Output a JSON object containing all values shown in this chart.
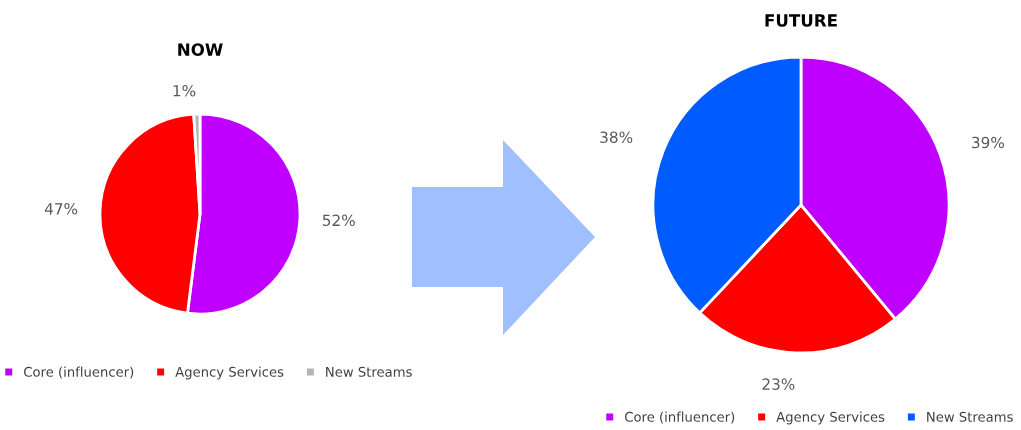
{
  "chart_data": [
    {
      "type": "pie",
      "title": "NOW",
      "categories": [
        "Core (influencer)",
        "Agency Services",
        "New Streams"
      ],
      "values": [
        52,
        47,
        1
      ],
      "colors": [
        "#bf00ff",
        "#ff0000",
        "#b4b4b4"
      ],
      "value_labels": [
        "52%",
        "47%",
        "1%"
      ],
      "legend": "bottom"
    },
    {
      "type": "pie",
      "title": "FUTURE",
      "categories": [
        "Core (influencer)",
        "Agency Services",
        "New Streams"
      ],
      "values": [
        39,
        23,
        38
      ],
      "colors": [
        "#bf00ff",
        "#ff0000",
        "#005cff"
      ],
      "value_labels": [
        "39%",
        "23%",
        "38%"
      ],
      "legend": "bottom"
    }
  ]
}
